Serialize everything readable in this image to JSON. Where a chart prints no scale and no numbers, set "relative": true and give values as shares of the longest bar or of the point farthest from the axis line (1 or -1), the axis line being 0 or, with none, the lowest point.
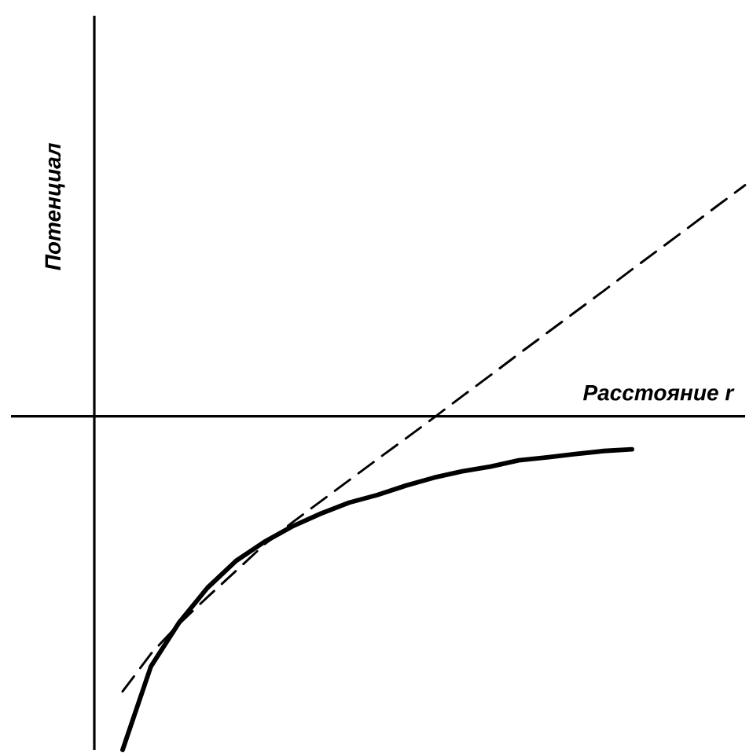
{
  "chart_data": {
    "type": "line",
    "relative": true,
    "xlabel": "Расстояние r",
    "ylabel": "Потенциал",
    "categories": [
      null,
      null,
      null,
      null,
      null,
      null,
      null,
      null,
      null,
      null,
      null,
      null,
      null,
      null,
      null,
      null,
      null,
      null,
      null,
      null,
      null,
      null,
      null,
      null
    ],
    "series": [
      {
        "color": "#000000",
        "line_style": "solid",
        "values": [
          null,
          -1.0,
          -0.75,
          -0.618,
          -0.514,
          -0.434,
          -0.377,
          -0.33,
          -0.292,
          -0.259,
          -0.236,
          -0.208,
          -0.184,
          -0.165,
          -0.151,
          -0.132,
          -0.123,
          -0.113,
          -0.104,
          -0.099,
          null,
          null,
          null,
          null
        ]
      },
      {
        "color": "#000000",
        "line_style": "dashed",
        "values": [
          null,
          -0.825,
          -0.712,
          -0.622,
          -0.542,
          -0.464,
          -0.385,
          -0.318,
          -0.255,
          -0.192,
          -0.129,
          -0.067,
          -0.004,
          0.06,
          0.123,
          0.187,
          0.25,
          0.313,
          0.376,
          0.44,
          0.503,
          0.566,
          0.63,
          0.693
        ]
      }
    ]
  }
}
